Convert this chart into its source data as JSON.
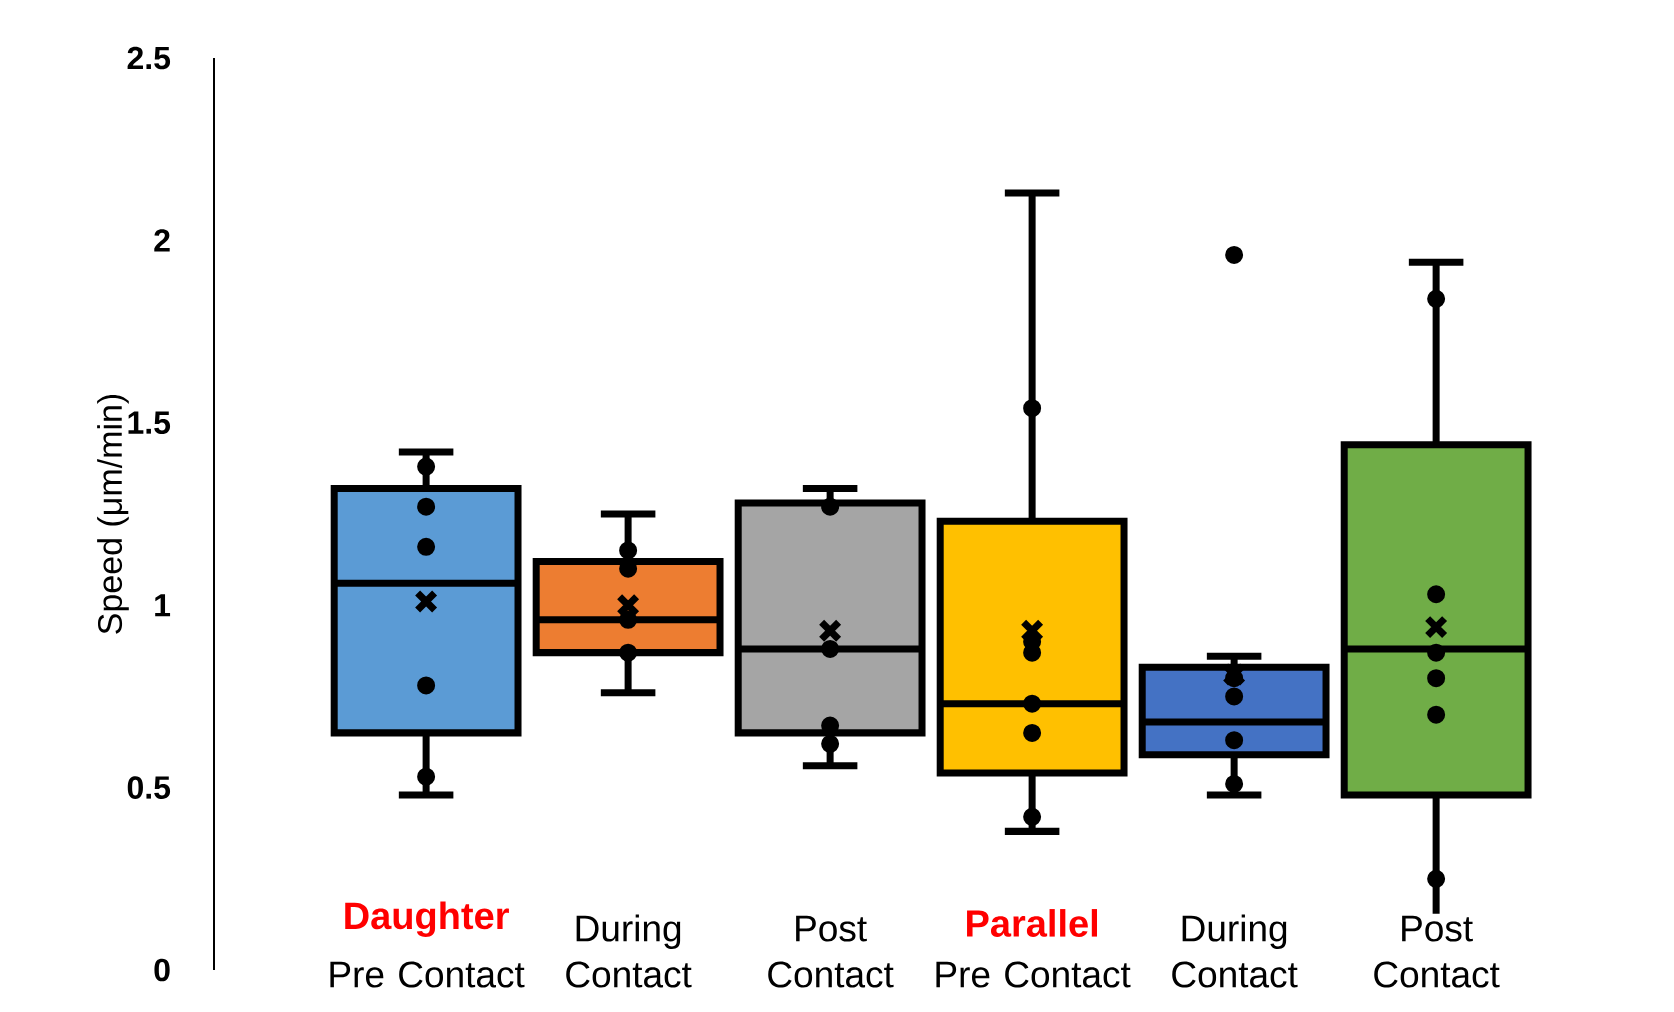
{
  "chart_data": {
    "type": "box",
    "ylabel": "Speed (μm/min)",
    "categories": [
      "Pre Contact",
      "During Contact",
      "Post Contact",
      "Pre Contact",
      "During Contact",
      "Post Contact"
    ],
    "annotations": [
      "Daughter",
      "Parallel"
    ],
    "ylim": [
      0,
      2.5
    ],
    "yticks": [
      0,
      0.5,
      1,
      1.5,
      2,
      2.5
    ],
    "series": [
      {
        "colors": [
          "#5b9bd5",
          "#ed7d31",
          "#a5a5a5",
          "#ffc000",
          "#4472c4",
          "#70ad47"
        ],
        "boxes": [
          {
            "low": 0.48,
            "q1": 0.65,
            "median": 1.06,
            "q3": 1.32,
            "high": 1.42,
            "mean": 1.01
          },
          {
            "low": 0.76,
            "q1": 0.87,
            "median": 0.96,
            "q3": 1.12,
            "high": 1.25,
            "mean": 1.0
          },
          {
            "low": 0.56,
            "q1": 0.65,
            "median": 0.88,
            "q3": 1.28,
            "high": 1.32,
            "mean": 0.93
          },
          {
            "low": 0.38,
            "q1": 0.54,
            "median": 0.73,
            "q3": 1.23,
            "high": 2.13,
            "mean": 0.93
          },
          {
            "low": 0.48,
            "q1": 0.59,
            "median": 0.68,
            "q3": 0.83,
            "high": 0.86,
            "mean": 0.81,
            "outliers": [
              1.96
            ]
          },
          {
            "low": 0.13,
            "q1": 0.48,
            "median": 0.88,
            "q3": 1.44,
            "high": 1.94,
            "mean": 0.94
          }
        ]
      },
      {
        "type": "scatter",
        "marker": "circle",
        "color": "#000000",
        "values": [
          1.38,
          1.15,
          1.27,
          1.54,
          0.8,
          1.84
        ]
      },
      {
        "type": "scatter",
        "marker": "circle",
        "color": "#000000",
        "values": [
          1.27,
          1.1,
          0.88,
          0.9,
          0.75,
          1.03
        ]
      },
      {
        "type": "scatter",
        "marker": "circle",
        "color": "#000000",
        "values": [
          1.16,
          0.96,
          0.67,
          0.87,
          0.63,
          0.87
        ]
      },
      {
        "type": "scatter",
        "marker": "circle",
        "color": "#000000",
        "values": [
          0.78,
          0.87,
          0.62,
          0.73,
          0.51,
          0.8
        ]
      },
      {
        "type": "scatter",
        "marker": "circle",
        "color": "#000000",
        "values": [
          0.53,
          null,
          null,
          0.65,
          null,
          0.7
        ]
      },
      {
        "type": "scatter",
        "marker": "circle",
        "color": "#000000",
        "values": [
          null,
          null,
          null,
          0.42,
          null,
          0.25
        ]
      }
    ]
  }
}
